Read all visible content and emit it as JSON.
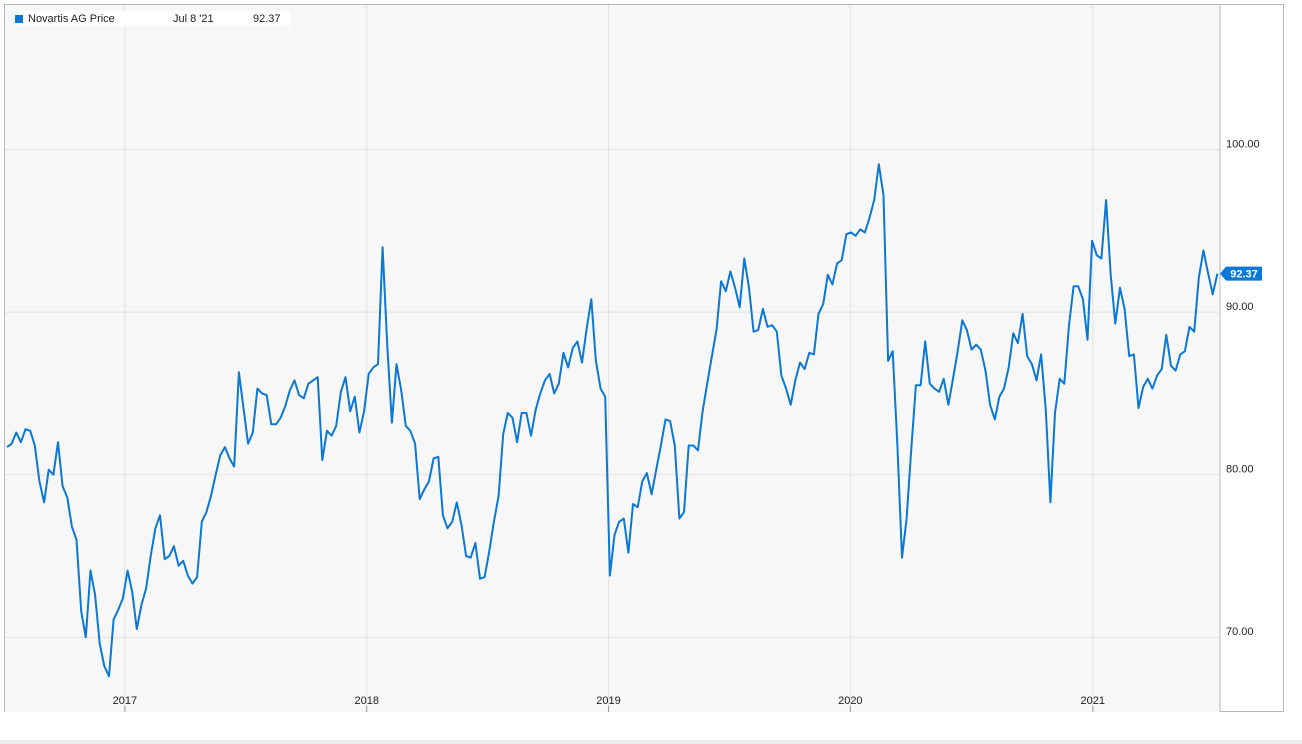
{
  "legend": {
    "series_name": "Novartis AG Price",
    "date": "Jul 8 '21",
    "value": "92.37"
  },
  "colors": {
    "line": "#0a78d4",
    "plot_bg": "#f7f7f7",
    "grid": "#e2e2e2",
    "axis_text": "#222222"
  },
  "chart_data": {
    "type": "line",
    "title": "",
    "xlabel": "",
    "ylabel": "",
    "ylim": [
      65.4,
      108.9
    ],
    "y_ticks": [
      70,
      80,
      90,
      100
    ],
    "y_tick_labels": [
      "70.00",
      "80.00",
      "90.00",
      "100.00"
    ],
    "x_ticks": [
      "2017",
      "2018",
      "2019",
      "2020",
      "2021"
    ],
    "last_value_label": "92.37",
    "grid": true,
    "legend_position": "top-left",
    "series": [
      {
        "name": "Novartis AG Price",
        "x": [
          "2016-07-07",
          "2016-07-14",
          "2016-07-21",
          "2016-07-28",
          "2016-08-04",
          "2016-08-11",
          "2016-08-18",
          "2016-08-25",
          "2016-09-01",
          "2016-09-08",
          "2016-09-15",
          "2016-09-22",
          "2016-09-29",
          "2016-10-06",
          "2016-10-13",
          "2016-10-20",
          "2016-10-27",
          "2016-11-03",
          "2016-11-10",
          "2016-11-17",
          "2016-11-24",
          "2016-12-01",
          "2016-12-08",
          "2016-12-15",
          "2016-12-22",
          "2016-12-29",
          "2017-01-05",
          "2017-01-12",
          "2017-01-19",
          "2017-01-26",
          "2017-02-02",
          "2017-02-09",
          "2017-02-16",
          "2017-02-23",
          "2017-03-02",
          "2017-03-09",
          "2017-03-16",
          "2017-03-23",
          "2017-03-30",
          "2017-04-06",
          "2017-04-13",
          "2017-04-20",
          "2017-04-27",
          "2017-05-04",
          "2017-05-11",
          "2017-05-18",
          "2017-05-25",
          "2017-06-01",
          "2017-06-08",
          "2017-06-15",
          "2017-06-22",
          "2017-06-29",
          "2017-07-06",
          "2017-07-13",
          "2017-07-20",
          "2017-07-27",
          "2017-08-03",
          "2017-08-10",
          "2017-08-17",
          "2017-08-24",
          "2017-08-31",
          "2017-09-07",
          "2017-09-14",
          "2017-09-21",
          "2017-09-28",
          "2017-10-05",
          "2017-10-12",
          "2017-10-19",
          "2017-10-26",
          "2017-11-02",
          "2017-11-09",
          "2017-11-16",
          "2017-11-23",
          "2017-11-30",
          "2017-12-07",
          "2017-12-14",
          "2017-12-21",
          "2017-12-28",
          "2018-01-04",
          "2018-01-11",
          "2018-01-18",
          "2018-01-25",
          "2018-02-01",
          "2018-02-08",
          "2018-02-15",
          "2018-02-22",
          "2018-03-01",
          "2018-03-08",
          "2018-03-15",
          "2018-03-22",
          "2018-03-29",
          "2018-04-05",
          "2018-04-12",
          "2018-04-19",
          "2018-04-26",
          "2018-05-03",
          "2018-05-10",
          "2018-05-17",
          "2018-05-24",
          "2018-05-31",
          "2018-06-07",
          "2018-06-14",
          "2018-06-21",
          "2018-06-28",
          "2018-07-05",
          "2018-07-12",
          "2018-07-19",
          "2018-07-26",
          "2018-08-02",
          "2018-08-09",
          "2018-08-16",
          "2018-08-23",
          "2018-08-30",
          "2018-09-06",
          "2018-09-13",
          "2018-09-20",
          "2018-09-27",
          "2018-10-04",
          "2018-10-11",
          "2018-10-18",
          "2018-10-25",
          "2018-11-01",
          "2018-11-08",
          "2018-11-15",
          "2018-11-22",
          "2018-11-29",
          "2018-12-06",
          "2018-12-13",
          "2018-12-20",
          "2018-12-27",
          "2019-01-03",
          "2019-01-10",
          "2019-01-17",
          "2019-01-24",
          "2019-01-31",
          "2019-02-07",
          "2019-02-14",
          "2019-02-21",
          "2019-02-28",
          "2019-03-07",
          "2019-03-14",
          "2019-03-21",
          "2019-03-28",
          "2019-04-04",
          "2019-04-11",
          "2019-04-18",
          "2019-04-25",
          "2019-05-02",
          "2019-05-09",
          "2019-05-16",
          "2019-05-23",
          "2019-05-30",
          "2019-06-06",
          "2019-06-13",
          "2019-06-20",
          "2019-06-27",
          "2019-07-04",
          "2019-07-11",
          "2019-07-18",
          "2019-07-25",
          "2019-08-01",
          "2019-08-08",
          "2019-08-15",
          "2019-08-22",
          "2019-08-29",
          "2019-09-05",
          "2019-09-12",
          "2019-09-19",
          "2019-09-26",
          "2019-10-03",
          "2019-10-10",
          "2019-10-17",
          "2019-10-24",
          "2019-10-31",
          "2019-11-07",
          "2019-11-14",
          "2019-11-21",
          "2019-11-28",
          "2019-12-05",
          "2019-12-12",
          "2019-12-19",
          "2019-12-26",
          "2020-01-02",
          "2020-01-09",
          "2020-01-16",
          "2020-01-23",
          "2020-01-30",
          "2020-02-06",
          "2020-02-13",
          "2020-02-20",
          "2020-02-27",
          "2020-03-05",
          "2020-03-12",
          "2020-03-19",
          "2020-03-26",
          "2020-04-02",
          "2020-04-09",
          "2020-04-16",
          "2020-04-23",
          "2020-04-30",
          "2020-05-07",
          "2020-05-14",
          "2020-05-21",
          "2020-05-28",
          "2020-06-04",
          "2020-06-11",
          "2020-06-18",
          "2020-06-25",
          "2020-07-02",
          "2020-07-09",
          "2020-07-16",
          "2020-07-23",
          "2020-07-30",
          "2020-08-06",
          "2020-08-13",
          "2020-08-20",
          "2020-08-27",
          "2020-09-03",
          "2020-09-10",
          "2020-09-17",
          "2020-09-24",
          "2020-10-01",
          "2020-10-08",
          "2020-10-15",
          "2020-10-22",
          "2020-10-29",
          "2020-11-05",
          "2020-11-12",
          "2020-11-19",
          "2020-11-26",
          "2020-12-03",
          "2020-12-10",
          "2020-12-17",
          "2020-12-24",
          "2020-12-31",
          "2021-01-07",
          "2021-01-14",
          "2021-01-21",
          "2021-01-28",
          "2021-02-04",
          "2021-02-11",
          "2021-02-18",
          "2021-02-25",
          "2021-03-04",
          "2021-03-11",
          "2021-03-18",
          "2021-03-25",
          "2021-04-01",
          "2021-04-08",
          "2021-04-15",
          "2021-04-22",
          "2021-04-29",
          "2021-05-06",
          "2021-05-13",
          "2021-05-20",
          "2021-05-27",
          "2021-06-03",
          "2021-06-10",
          "2021-06-17",
          "2021-06-24",
          "2021-07-01",
          "2021-07-08"
        ],
        "values": [
          81.7,
          81.9,
          82.6,
          82.0,
          82.8,
          82.7,
          81.8,
          79.6,
          78.3,
          80.3,
          80.0,
          82.0,
          79.3,
          78.6,
          76.8,
          76.0,
          71.6,
          70.0,
          74.1,
          72.6,
          69.6,
          68.2,
          67.6,
          71.1,
          71.7,
          72.4,
          74.1,
          72.8,
          70.5,
          72.0,
          73.0,
          75.0,
          76.7,
          77.5,
          74.8,
          75.0,
          75.6,
          74.4,
          74.7,
          73.8,
          73.3,
          73.7,
          77.1,
          77.7,
          78.7,
          80.0,
          81.2,
          81.7,
          81.0,
          80.5,
          86.3,
          84.1,
          81.9,
          82.6,
          85.3,
          85.0,
          84.9,
          83.1,
          83.1,
          83.5,
          84.2,
          85.2,
          85.8,
          84.9,
          84.7,
          85.6,
          85.8,
          86.0,
          80.9,
          82.7,
          82.4,
          83.0,
          85.1,
          86.0,
          83.9,
          84.8,
          82.6,
          83.9,
          86.2,
          86.6,
          86.8,
          94.0,
          87.9,
          83.2,
          86.8,
          85.2,
          83.0,
          82.7,
          81.9,
          78.5,
          79.1,
          79.6,
          81.0,
          81.1,
          77.5,
          76.7,
          77.1,
          78.3,
          76.9,
          75.0,
          74.9,
          75.8,
          73.6,
          73.7,
          75.3,
          77.1,
          78.7,
          82.5,
          83.8,
          83.5,
          82.0,
          83.8,
          83.8,
          82.4,
          84.0,
          85.0,
          85.8,
          86.2,
          85.0,
          85.6,
          87.5,
          86.6,
          87.8,
          88.2,
          86.9,
          89.0,
          90.8,
          87.0,
          85.3,
          84.8,
          73.8,
          76.3,
          77.1,
          77.3,
          75.2,
          78.2,
          78.0,
          79.6,
          80.1,
          78.8,
          80.3,
          81.8,
          83.4,
          83.3,
          81.8,
          77.3,
          77.7,
          81.8,
          81.8,
          81.5,
          83.9,
          85.6,
          87.3,
          88.9,
          91.9,
          91.3,
          92.5,
          91.5,
          90.3,
          93.3,
          91.5,
          88.8,
          88.9,
          90.2,
          89.1,
          89.2,
          88.8,
          86.1,
          85.3,
          84.3,
          85.8,
          86.9,
          86.5,
          87.5,
          87.4,
          89.9,
          90.5,
          92.3,
          91.7,
          93.0,
          93.2,
          94.8,
          94.9,
          94.7,
          95.1,
          94.9,
          95.8,
          96.9,
          99.1,
          97.2,
          87.0,
          87.6,
          81.8,
          74.9,
          77.3,
          81.6,
          85.5,
          85.5,
          88.2,
          85.6,
          85.3,
          85.1,
          85.9,
          84.3,
          85.9,
          87.6,
          89.5,
          88.9,
          87.7,
          88.0,
          87.7,
          86.4,
          84.3,
          83.4,
          84.8,
          85.3,
          86.6,
          88.7,
          88.1,
          89.9,
          87.3,
          86.8,
          85.8,
          87.4,
          84.0,
          78.3,
          83.8,
          85.9,
          85.6,
          89.2,
          91.6,
          91.6,
          90.8,
          88.3,
          94.4,
          93.5,
          93.3,
          96.9,
          92.3,
          89.3,
          91.5,
          90.2,
          87.3,
          87.4,
          84.1,
          85.4,
          85.9,
          85.3,
          86.1,
          86.5,
          88.6,
          86.7,
          86.4,
          87.4,
          87.6,
          89.1,
          88.8,
          92.1,
          93.8,
          92.4,
          91.1,
          92.37
        ]
      }
    ]
  }
}
